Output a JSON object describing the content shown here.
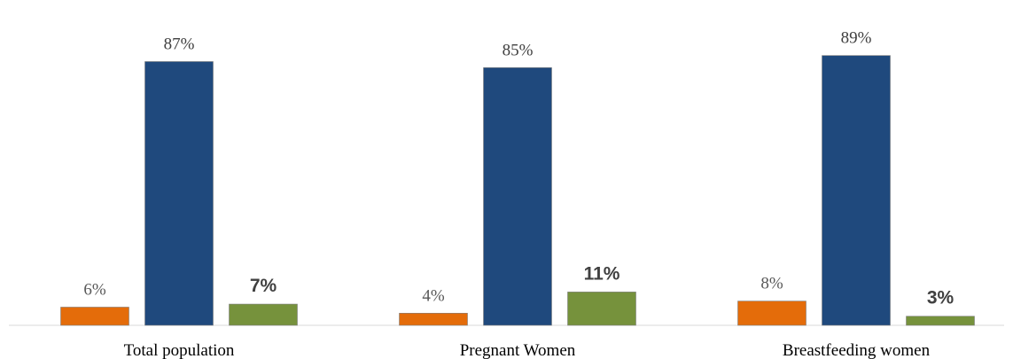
{
  "chart_data": {
    "type": "bar",
    "categories": [
      "Total population",
      "Pregnant Women",
      "Breastfeeding women"
    ],
    "series": [
      {
        "color": "#E46C0A",
        "values": [
          6,
          4,
          8
        ],
        "labels": [
          "6%",
          "4%",
          "8%"
        ]
      },
      {
        "color": "#1F497D",
        "values": [
          87,
          85,
          89
        ],
        "labels": [
          "87%",
          "85%",
          "89%"
        ]
      },
      {
        "color": "#76923C",
        "values": [
          7,
          11,
          3
        ],
        "labels": [
          "7%",
          "11%",
          "3%"
        ]
      }
    ],
    "ylim": [
      0,
      100
    ],
    "grid": false,
    "legend": "none",
    "label_colors": [
      "#595959",
      "#404040",
      "#404040"
    ]
  }
}
